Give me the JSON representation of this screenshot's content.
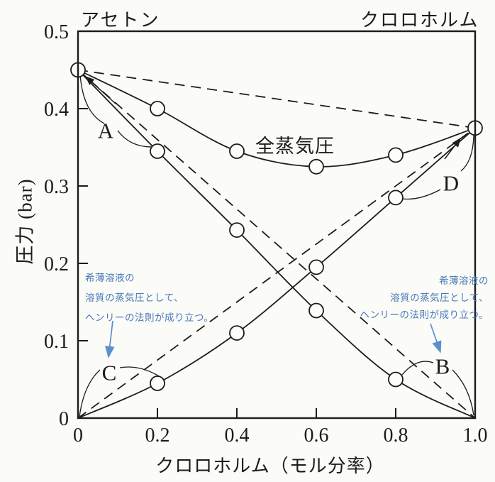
{
  "figure": {
    "top_left_substance": "アセトン",
    "top_right_substance": "クロロホルム"
  },
  "chart_data": {
    "type": "line",
    "title": "",
    "xlabel": "クロロホルム（モル分率）",
    "ylabel": "圧力 (bar)",
    "xlim": [
      0,
      1.0
    ],
    "ylim": [
      0,
      0.5
    ],
    "grid": false,
    "legend": "none",
    "xtick_values": [
      0,
      0.2,
      0.4,
      0.6,
      0.8,
      1.0
    ],
    "xtick_labels": [
      "0",
      "0.2",
      "0.4",
      "0.6",
      "0.8",
      "1.0"
    ],
    "ytick_values": [
      0,
      0.1,
      0.2,
      0.3,
      0.4,
      0.5
    ],
    "ytick_labels": [
      "0",
      "0.1",
      "0.2",
      "0.3",
      "0.4",
      "0.5"
    ],
    "x": [
      0,
      0.2,
      0.4,
      0.6,
      0.8,
      1.0
    ],
    "series": [
      {
        "id": "total-vapor-pressure",
        "label": "全蒸気圧",
        "values": [
          0.45,
          0.4,
          0.345,
          0.325,
          0.34,
          0.375
        ],
        "line": "solid",
        "markers": [
          true,
          true,
          true,
          true,
          true,
          true
        ]
      },
      {
        "id": "acetone-partial-pressure",
        "label": "",
        "values": [
          0.45,
          0.345,
          0.243,
          0.139,
          0.05,
          0
        ],
        "line": "solid",
        "markers": [
          false,
          true,
          true,
          true,
          true,
          false
        ]
      },
      {
        "id": "chloroform-partial-pressure",
        "label": "",
        "values": [
          0,
          0.045,
          0.11,
          0.195,
          0.285,
          0.375
        ],
        "line": "solid",
        "markers": [
          false,
          true,
          true,
          true,
          true,
          false
        ]
      }
    ],
    "dashed_reference_lines": [
      {
        "id": "raoult-ideal-total",
        "from": [
          0,
          0.45
        ],
        "to": [
          1,
          0.375
        ]
      },
      {
        "id": "raoult-acetone",
        "from": [
          0,
          0.45
        ],
        "to": [
          1,
          0
        ]
      },
      {
        "id": "raoult-chloroform",
        "from": [
          0,
          0
        ],
        "to": [
          1,
          0.375
        ]
      }
    ],
    "region_labels": [
      "A",
      "B",
      "C",
      "D"
    ]
  },
  "curve_labels": {
    "total": "全蒸気圧",
    "a": "A",
    "b": "B",
    "c": "C",
    "d": "D"
  },
  "annotations": {
    "left": {
      "lines": [
        "希薄溶液の",
        "溶質の蒸気圧として、",
        "ヘンリーの法則が成り立つ。"
      ]
    },
    "right": {
      "lines": [
        "希薄溶液の",
        "溶質の蒸気圧として、",
        "ヘンリーの法則が成り立つ。"
      ]
    }
  },
  "colors": {
    "ink": "#1c1c1c",
    "annotation_text": "#4a79b8",
    "annotation_arrow": "#5b8fce",
    "paper": "#fbfbf8",
    "marker_fill": "#fdfdfc"
  }
}
